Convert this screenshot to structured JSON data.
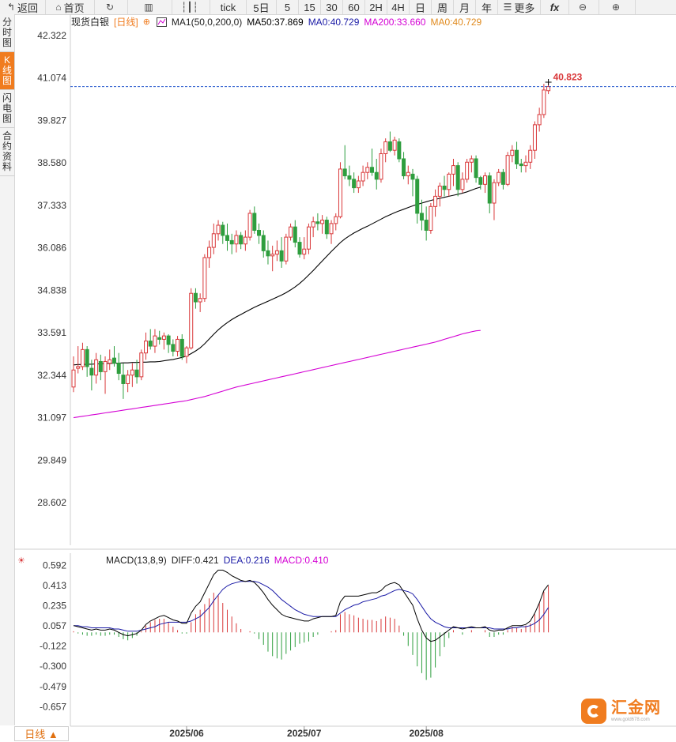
{
  "toolbar": {
    "items": [
      {
        "label": "返回",
        "icon": "back-arrow-icon"
      },
      {
        "label": "首页",
        "icon": "home-icon"
      },
      {
        "label": "",
        "icon": "refresh-icon"
      },
      {
        "label": "",
        "icon": "bar-chart-icon"
      },
      {
        "label": "",
        "icon": "candlestick-icon"
      },
      {
        "label": "tick",
        "icon": ""
      },
      {
        "label": "5日",
        "icon": ""
      },
      {
        "label": "5",
        "icon": ""
      },
      {
        "label": "15",
        "icon": ""
      },
      {
        "label": "30",
        "icon": ""
      },
      {
        "label": "60",
        "icon": ""
      },
      {
        "label": "2H",
        "icon": ""
      },
      {
        "label": "4H",
        "icon": ""
      },
      {
        "label": "日",
        "icon": ""
      },
      {
        "label": "周",
        "icon": ""
      },
      {
        "label": "月",
        "icon": ""
      },
      {
        "label": "年",
        "icon": ""
      },
      {
        "label": "更多",
        "icon": "menu-icon"
      },
      {
        "label": "fx",
        "icon": ""
      },
      {
        "label": "",
        "icon": "zoom-out-icon"
      },
      {
        "label": "",
        "icon": "zoom-in-icon"
      }
    ]
  },
  "side_tabs": [
    {
      "label": "分时图",
      "active": false
    },
    {
      "label": "K线图",
      "active": true
    },
    {
      "label": "闪电图",
      "active": false
    },
    {
      "label": "合约资料",
      "active": false
    }
  ],
  "legend": {
    "symbol": "现货白银",
    "period": "[日线]",
    "ma_name": "MA1(50,0,200,0)",
    "ma50": "MA50:37.869",
    "ma0": "MA0:40.729",
    "ma200": "MA200:33.660",
    "ma0b": "MA0:40.729"
  },
  "macd_legend": {
    "name": "MACD(13,8,9)",
    "diff": "DIFF:0.421",
    "dea": "DEA:0.216",
    "macd": "MACD:0.410"
  },
  "last_price_label": "40.823",
  "footer": {
    "period_tab": "日线 ▲"
  },
  "logo": {
    "name": "汇金网",
    "url": "www.gold678.com"
  },
  "colors": {
    "up": "#d9383a",
    "down": "#2e9e3e",
    "ma50": "#000000",
    "ma200": "#d400d4",
    "dea": "#1a1aa6",
    "last_line": "#2255cc",
    "accent": "#f07c1f"
  },
  "chart_data": [
    {
      "type": "candlestick",
      "title": "现货白银 日线",
      "ylim": [
        27.355,
        42.945
      ],
      "y_ticks": [
        "42.322",
        "41.074",
        "39.827",
        "38.580",
        "37.333",
        "36.086",
        "34.838",
        "33.591",
        "32.344",
        "31.097",
        "29.849",
        "28.602"
      ],
      "x_ticks": [
        "2025/06",
        "2025/07",
        "2025/08"
      ],
      "ohlc": [
        [
          32.0,
          32.9,
          31.85,
          32.5
        ],
        [
          32.55,
          33.2,
          32.4,
          32.6
        ],
        [
          32.6,
          33.3,
          32.5,
          33.1
        ],
        [
          33.1,
          33.2,
          32.3,
          32.6
        ],
        [
          32.55,
          32.8,
          31.9,
          32.35
        ],
        [
          32.35,
          33.0,
          32.1,
          32.8
        ],
        [
          32.75,
          32.95,
          32.2,
          32.45
        ],
        [
          32.45,
          32.9,
          31.8,
          32.75
        ],
        [
          32.7,
          33.1,
          32.5,
          32.8
        ],
        [
          32.85,
          33.2,
          32.6,
          32.7
        ],
        [
          32.7,
          33.0,
          32.2,
          32.4
        ],
        [
          32.35,
          32.7,
          31.65,
          32.1
        ],
        [
          32.1,
          32.5,
          31.85,
          32.35
        ],
        [
          32.35,
          32.7,
          32.0,
          32.5
        ],
        [
          32.5,
          32.8,
          32.1,
          32.3
        ],
        [
          32.3,
          33.1,
          32.2,
          33.0
        ],
        [
          33.0,
          33.6,
          32.8,
          33.35
        ],
        [
          33.35,
          33.7,
          33.1,
          33.2
        ],
        [
          33.2,
          33.7,
          33.0,
          33.5
        ],
        [
          33.45,
          33.65,
          33.25,
          33.4
        ],
        [
          33.4,
          33.6,
          33.1,
          33.5
        ],
        [
          33.5,
          33.55,
          33.0,
          33.25
        ],
        [
          33.25,
          33.4,
          32.9,
          33.05
        ],
        [
          33.05,
          33.5,
          32.9,
          33.4
        ],
        [
          33.4,
          33.55,
          32.8,
          32.9
        ],
        [
          32.9,
          33.2,
          32.7,
          33.15
        ],
        [
          33.15,
          34.9,
          33.1,
          34.75
        ],
        [
          34.75,
          34.9,
          34.3,
          34.5
        ],
        [
          34.5,
          34.75,
          34.2,
          34.6
        ],
        [
          34.6,
          35.9,
          34.5,
          35.8
        ],
        [
          35.8,
          36.3,
          35.5,
          36.1
        ],
        [
          36.1,
          36.8,
          35.9,
          36.5
        ],
        [
          36.5,
          36.9,
          36.3,
          36.75
        ],
        [
          36.75,
          36.85,
          36.2,
          36.45
        ],
        [
          36.45,
          36.8,
          36.0,
          36.3
        ],
        [
          36.3,
          36.5,
          35.9,
          36.2
        ],
        [
          36.2,
          36.6,
          35.95,
          36.45
        ],
        [
          36.45,
          36.55,
          36.05,
          36.2
        ],
        [
          36.2,
          36.6,
          36.0,
          36.4
        ],
        [
          36.4,
          37.2,
          36.3,
          37.1
        ],
        [
          37.1,
          37.3,
          36.5,
          36.6
        ],
        [
          36.6,
          36.8,
          36.2,
          36.45
        ],
        [
          36.45,
          36.6,
          35.8,
          36.0
        ],
        [
          36.0,
          36.3,
          35.6,
          35.85
        ],
        [
          35.85,
          36.15,
          35.4,
          35.9
        ],
        [
          35.9,
          36.3,
          35.7,
          36.0
        ],
        [
          36.0,
          36.4,
          35.5,
          35.7
        ],
        [
          35.7,
          36.5,
          35.6,
          36.4
        ],
        [
          36.4,
          36.8,
          36.3,
          36.7
        ],
        [
          36.7,
          36.9,
          36.1,
          36.25
        ],
        [
          36.25,
          36.4,
          35.8,
          35.9
        ],
        [
          35.9,
          36.4,
          35.75,
          36.05
        ],
        [
          36.05,
          36.8,
          35.9,
          36.7
        ],
        [
          36.7,
          37.0,
          36.4,
          36.85
        ],
        [
          36.85,
          37.1,
          36.6,
          36.8
        ],
        [
          36.8,
          37.05,
          36.5,
          36.9
        ],
        [
          36.9,
          37.0,
          36.35,
          36.5
        ],
        [
          36.5,
          36.9,
          36.2,
          36.8
        ],
        [
          36.8,
          37.1,
          36.6,
          37.0
        ],
        [
          37.0,
          38.6,
          36.95,
          38.4
        ],
        [
          38.4,
          39.1,
          38.1,
          38.2
        ],
        [
          38.2,
          38.5,
          37.9,
          38.1
        ],
        [
          38.1,
          38.3,
          37.7,
          37.85
        ],
        [
          37.85,
          38.2,
          37.7,
          38.05
        ],
        [
          38.05,
          38.5,
          37.9,
          38.3
        ],
        [
          38.3,
          38.6,
          38.1,
          38.45
        ],
        [
          38.45,
          39.0,
          38.2,
          38.3
        ],
        [
          38.3,
          38.7,
          37.8,
          38.1
        ],
        [
          38.1,
          39.0,
          38.0,
          38.85
        ],
        [
          38.85,
          39.3,
          38.6,
          39.2
        ],
        [
          39.2,
          39.5,
          38.9,
          38.95
        ],
        [
          38.95,
          39.35,
          38.8,
          39.25
        ],
        [
          39.2,
          39.3,
          38.6,
          38.7
        ],
        [
          38.7,
          38.9,
          38.1,
          38.2
        ],
        [
          38.2,
          38.5,
          37.95,
          38.3
        ],
        [
          38.25,
          38.4,
          37.6,
          38.1
        ],
        [
          38.1,
          38.2,
          36.8,
          37.1
        ],
        [
          37.1,
          37.5,
          36.6,
          36.9
        ],
        [
          36.9,
          37.3,
          36.3,
          36.6
        ],
        [
          36.6,
          37.4,
          36.5,
          37.3
        ],
        [
          37.3,
          37.8,
          37.0,
          37.6
        ],
        [
          37.6,
          38.0,
          37.3,
          37.9
        ],
        [
          37.9,
          38.2,
          37.6,
          37.8
        ],
        [
          37.8,
          38.3,
          37.6,
          38.25
        ],
        [
          38.25,
          38.7,
          37.9,
          38.5
        ],
        [
          38.5,
          38.6,
          37.6,
          37.8
        ],
        [
          37.8,
          38.3,
          37.7,
          38.1
        ],
        [
          38.1,
          38.7,
          38.0,
          38.6
        ],
        [
          38.6,
          38.8,
          38.3,
          38.7
        ],
        [
          38.7,
          38.8,
          38.0,
          38.15
        ],
        [
          38.15,
          38.2,
          37.8,
          37.95
        ],
        [
          37.95,
          38.3,
          37.7,
          38.2
        ],
        [
          38.2,
          38.3,
          37.1,
          37.4
        ],
        [
          37.4,
          38.1,
          36.9,
          38.0
        ],
        [
          38.0,
          38.4,
          37.9,
          38.3
        ],
        [
          38.3,
          38.4,
          37.8,
          37.95
        ],
        [
          37.95,
          38.9,
          37.9,
          38.8
        ],
        [
          38.8,
          39.1,
          38.6,
          38.95
        ],
        [
          38.95,
          39.2,
          38.4,
          38.55
        ],
        [
          38.55,
          38.7,
          38.3,
          38.5
        ],
        [
          38.5,
          38.8,
          38.3,
          38.6
        ],
        [
          38.6,
          39.1,
          38.4,
          38.95
        ],
        [
          38.95,
          39.8,
          38.7,
          39.7
        ],
        [
          39.7,
          40.2,
          39.5,
          40.0
        ],
        [
          40.0,
          40.9,
          39.9,
          40.72
        ],
        [
          40.7,
          40.95,
          40.6,
          40.82
        ]
      ],
      "ma50": [
        32.65,
        32.66,
        32.66,
        32.67,
        32.67,
        32.68,
        32.68,
        32.69,
        32.69,
        32.7,
        32.7,
        32.71,
        32.71,
        32.72,
        32.72,
        32.73,
        32.73,
        32.74,
        32.74,
        32.75,
        32.77,
        32.79,
        32.81,
        32.84,
        32.87,
        32.91,
        32.98,
        33.06,
        33.15,
        33.27,
        33.41,
        33.55,
        33.68,
        33.79,
        33.89,
        33.98,
        34.06,
        34.13,
        34.2,
        34.27,
        34.34,
        34.4,
        34.46,
        34.52,
        34.58,
        34.64,
        34.7,
        34.77,
        34.85,
        34.94,
        35.04,
        35.16,
        35.29,
        35.42,
        35.56,
        35.7,
        35.84,
        35.98,
        36.11,
        36.24,
        36.35,
        36.44,
        36.52,
        36.59,
        36.66,
        36.72,
        36.79,
        36.86,
        36.93,
        37.0,
        37.06,
        37.12,
        37.17,
        37.22,
        37.27,
        37.32,
        37.36,
        37.4,
        37.44,
        37.48,
        37.51,
        37.54,
        37.57,
        37.6,
        37.63,
        37.66,
        37.69,
        37.73,
        37.78,
        37.83,
        37.87
      ],
      "ma200": [
        31.1,
        31.12,
        31.14,
        31.16,
        31.18,
        31.2,
        31.22,
        31.24,
        31.26,
        31.28,
        31.3,
        31.32,
        31.34,
        31.36,
        31.38,
        31.4,
        31.42,
        31.44,
        31.46,
        31.48,
        31.5,
        31.52,
        31.54,
        31.56,
        31.58,
        31.6,
        31.63,
        31.66,
        31.69,
        31.72,
        31.76,
        31.8,
        31.84,
        31.88,
        31.92,
        31.96,
        32.0,
        32.03,
        32.06,
        32.09,
        32.12,
        32.15,
        32.18,
        32.21,
        32.24,
        32.27,
        32.3,
        32.33,
        32.36,
        32.39,
        32.42,
        32.45,
        32.48,
        32.51,
        32.54,
        32.57,
        32.6,
        32.63,
        32.66,
        32.69,
        32.72,
        32.75,
        32.78,
        32.81,
        32.84,
        32.87,
        32.9,
        32.93,
        32.96,
        32.99,
        33.02,
        33.05,
        33.08,
        33.11,
        33.14,
        33.17,
        33.2,
        33.23,
        33.26,
        33.29,
        33.32,
        33.36,
        33.4,
        33.44,
        33.48,
        33.52,
        33.56,
        33.59,
        33.62,
        33.65,
        33.66
      ]
    },
    {
      "type": "macd",
      "title": "MACD(13,8,9)",
      "ylim": [
        -0.78,
        0.7
      ],
      "y_ticks": [
        "0.592",
        "0.413",
        "0.235",
        "0.057",
        "-0.122",
        "-0.300",
        "-0.479",
        "-0.657"
      ],
      "diff": [
        0.06,
        0.05,
        0.04,
        0.03,
        0.02,
        0.03,
        0.02,
        0.02,
        0.03,
        0.02,
        0.0,
        -0.02,
        -0.03,
        -0.02,
        -0.01,
        0.02,
        0.07,
        0.1,
        0.12,
        0.14,
        0.15,
        0.13,
        0.11,
        0.1,
        0.08,
        0.08,
        0.17,
        0.23,
        0.27,
        0.35,
        0.43,
        0.51,
        0.55,
        0.55,
        0.53,
        0.5,
        0.48,
        0.46,
        0.45,
        0.46,
        0.44,
        0.4,
        0.35,
        0.29,
        0.24,
        0.2,
        0.16,
        0.14,
        0.13,
        0.12,
        0.11,
        0.1,
        0.1,
        0.12,
        0.13,
        0.14,
        0.14,
        0.14,
        0.15,
        0.27,
        0.32,
        0.32,
        0.32,
        0.32,
        0.33,
        0.34,
        0.35,
        0.35,
        0.37,
        0.41,
        0.43,
        0.44,
        0.42,
        0.36,
        0.3,
        0.24,
        0.12,
        0.02,
        -0.05,
        -0.08,
        -0.07,
        -0.04,
        -0.01,
        0.02,
        0.05,
        0.04,
        0.03,
        0.04,
        0.05,
        0.04,
        0.04,
        0.05,
        0.02,
        0.01,
        0.02,
        0.02,
        0.04,
        0.06,
        0.06,
        0.06,
        0.07,
        0.1,
        0.17,
        0.26,
        0.37,
        0.42
      ],
      "dea": [
        0.06,
        0.06,
        0.05,
        0.05,
        0.04,
        0.04,
        0.04,
        0.04,
        0.04,
        0.03,
        0.03,
        0.02,
        0.01,
        0.01,
        0.01,
        0.02,
        0.03,
        0.04,
        0.05,
        0.07,
        0.08,
        0.09,
        0.09,
        0.09,
        0.09,
        0.09,
        0.1,
        0.12,
        0.14,
        0.18,
        0.22,
        0.28,
        0.33,
        0.38,
        0.41,
        0.43,
        0.44,
        0.45,
        0.45,
        0.45,
        0.45,
        0.44,
        0.42,
        0.4,
        0.37,
        0.33,
        0.29,
        0.26,
        0.23,
        0.2,
        0.18,
        0.16,
        0.15,
        0.14,
        0.14,
        0.14,
        0.14,
        0.14,
        0.14,
        0.17,
        0.2,
        0.22,
        0.24,
        0.25,
        0.27,
        0.28,
        0.29,
        0.3,
        0.32,
        0.33,
        0.35,
        0.37,
        0.38,
        0.37,
        0.36,
        0.34,
        0.29,
        0.23,
        0.17,
        0.12,
        0.09,
        0.07,
        0.05,
        0.04,
        0.04,
        0.04,
        0.04,
        0.04,
        0.04,
        0.04,
        0.04,
        0.04,
        0.04,
        0.03,
        0.03,
        0.03,
        0.03,
        0.04,
        0.04,
        0.05,
        0.05,
        0.06,
        0.08,
        0.11,
        0.16,
        0.22
      ],
      "macd": [
        0.01,
        -0.01,
        -0.02,
        -0.03,
        -0.03,
        -0.02,
        -0.03,
        -0.03,
        -0.02,
        -0.02,
        -0.04,
        -0.06,
        -0.07,
        -0.05,
        -0.03,
        0.01,
        0.06,
        0.09,
        0.11,
        0.12,
        0.12,
        0.09,
        0.05,
        0.02,
        -0.01,
        -0.01,
        0.09,
        0.16,
        0.2,
        0.25,
        0.3,
        0.35,
        0.33,
        0.26,
        0.2,
        0.14,
        0.08,
        0.03,
        0.0,
        0.01,
        -0.01,
        -0.06,
        -0.11,
        -0.17,
        -0.21,
        -0.23,
        -0.24,
        -0.19,
        -0.16,
        -0.13,
        -0.1,
        -0.09,
        -0.08,
        -0.04,
        -0.02,
        0.0,
        0.0,
        0.01,
        0.02,
        0.16,
        0.18,
        0.16,
        0.15,
        0.13,
        0.12,
        0.11,
        0.11,
        0.1,
        0.12,
        0.14,
        0.13,
        0.12,
        0.06,
        -0.03,
        -0.12,
        -0.2,
        -0.3,
        -0.36,
        -0.42,
        -0.4,
        -0.31,
        -0.21,
        -0.13,
        -0.05,
        0.02,
        0.0,
        -0.02,
        0.0,
        0.02,
        0.0,
        0.0,
        0.02,
        -0.04,
        -0.04,
        -0.02,
        -0.02,
        0.02,
        0.05,
        0.04,
        0.03,
        0.06,
        0.08,
        0.16,
        0.26,
        0.36,
        0.41
      ]
    }
  ]
}
